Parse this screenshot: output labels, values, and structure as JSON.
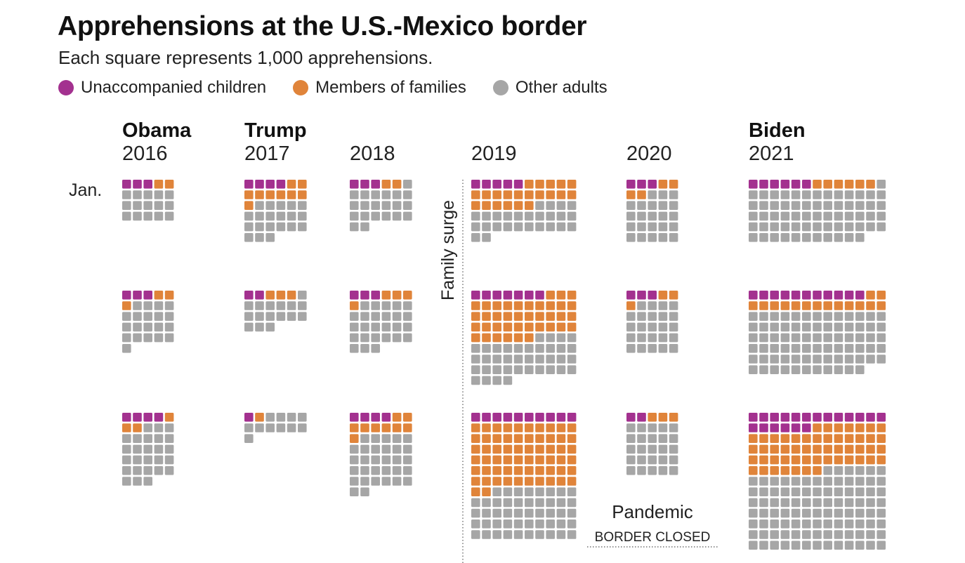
{
  "title": "Apprehensions at the U.S.-Mexico border",
  "subtitle": "Each square represents 1,000 apprehensions.",
  "legend": [
    {
      "label": "Unaccompanied children",
      "color": "#a3318f"
    },
    {
      "label": "Members of families",
      "color": "#e0843a"
    },
    {
      "label": "Other adults",
      "color": "#a6a6a6"
    }
  ],
  "chart_data": {
    "type": "waffle",
    "unit": "Each square represents 1,000 apprehensions.",
    "row_label": "Jan.",
    "series_names": [
      "Unaccompanied children",
      "Members of families",
      "Other adults"
    ],
    "years": [
      {
        "president": "Obama",
        "year": "2016",
        "months": [
          {
            "children": 3,
            "families": 2,
            "other": 15
          },
          {
            "children": 3,
            "families": 3,
            "other": 20
          },
          {
            "children": 4,
            "families": 3,
            "other": 26
          }
        ]
      },
      {
        "president": "Trump",
        "year": "2017",
        "months": [
          {
            "children": 4,
            "families": 9,
            "other": 20
          },
          {
            "children": 2,
            "families": 3,
            "other": 16
          },
          {
            "children": 1,
            "families": 1,
            "other": 11
          }
        ]
      },
      {
        "president": "",
        "year": "2018",
        "months": [
          {
            "children": 3,
            "families": 2,
            "other": 21
          },
          {
            "children": 3,
            "families": 4,
            "other": 26
          },
          {
            "children": 4,
            "families": 9,
            "other": 31
          }
        ]
      },
      {
        "president": "",
        "year": "2019",
        "months": [
          {
            "children": 5,
            "families": 21,
            "other": 26
          },
          {
            "children": 7,
            "families": 39,
            "other": 38
          },
          {
            "children": 10,
            "families": 62,
            "other": 48
          }
        ]
      },
      {
        "president": "",
        "year": "2020",
        "months": [
          {
            "children": 3,
            "families": 4,
            "other": 23
          },
          {
            "children": 3,
            "families": 3,
            "other": 24
          },
          {
            "children": 2,
            "families": 3,
            "other": 25
          }
        ]
      },
      {
        "president": "Biden",
        "year": "2021",
        "months": [
          {
            "children": 6,
            "families": 6,
            "other": 64
          },
          {
            "children": 11,
            "families": 15,
            "other": 76
          },
          {
            "children": 19,
            "families": 53,
            "other": 97
          }
        ]
      }
    ],
    "annotations": {
      "family_surge": "Family surge",
      "pandemic": "Pandemic",
      "border_closed": "BORDER CLOSED"
    }
  }
}
